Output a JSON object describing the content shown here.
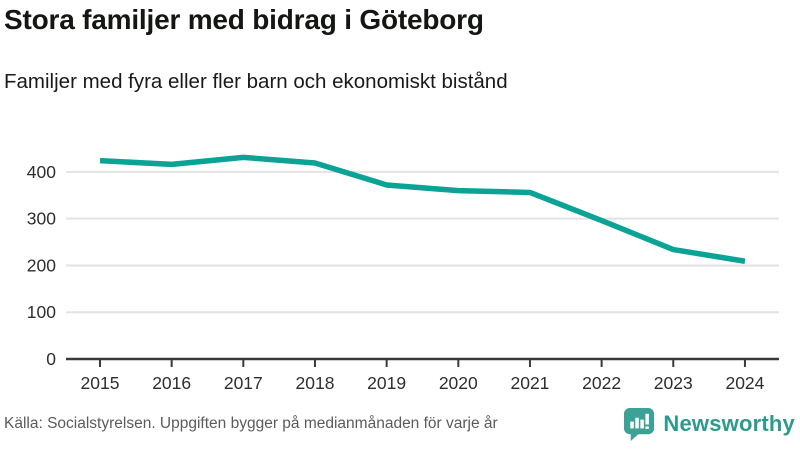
{
  "header": {
    "title": "Stora familjer med bidrag i Göteborg",
    "subtitle": "Familjer med fyra eller fler barn och ekonomiskt bistånd"
  },
  "footer": {
    "source": "Källa: Socialstyrelsen. Uppgiften bygger på medianmånaden för varje år",
    "brand": "Newsworthy",
    "brand_icon": "bar-chart-speech-bubble-icon"
  },
  "colors": {
    "line": "#0aa396",
    "grid": "#e3e3e3",
    "axis": "#3a3a3a",
    "tick_label": "#2e2e2e",
    "title_text": "#131613",
    "source_text": "#5b5b5b",
    "brand_teal": "#2c9a8d",
    "brand_bubble": "#3da295"
  },
  "chart_data": {
    "type": "line",
    "title": "Stora familjer med bidrag i Göteborg",
    "subtitle": "Familjer med fyra eller fler barn och ekonomiskt bistånd",
    "x": [
      2015,
      2016,
      2017,
      2018,
      2019,
      2020,
      2021,
      2022,
      2023,
      2024
    ],
    "series": [
      {
        "name": "Familjer med fyra eller fler barn och ekonomiskt bistånd",
        "values": [
          424,
          416,
          431,
          419,
          372,
          360,
          356,
          296,
          234,
          209
        ]
      }
    ],
    "xlabel": "",
    "ylabel": "",
    "ylim": [
      0,
      460
    ],
    "yticks": [
      0,
      100,
      200,
      300,
      400
    ],
    "grid": true,
    "legend": false,
    "line_color": "#0aa396"
  }
}
